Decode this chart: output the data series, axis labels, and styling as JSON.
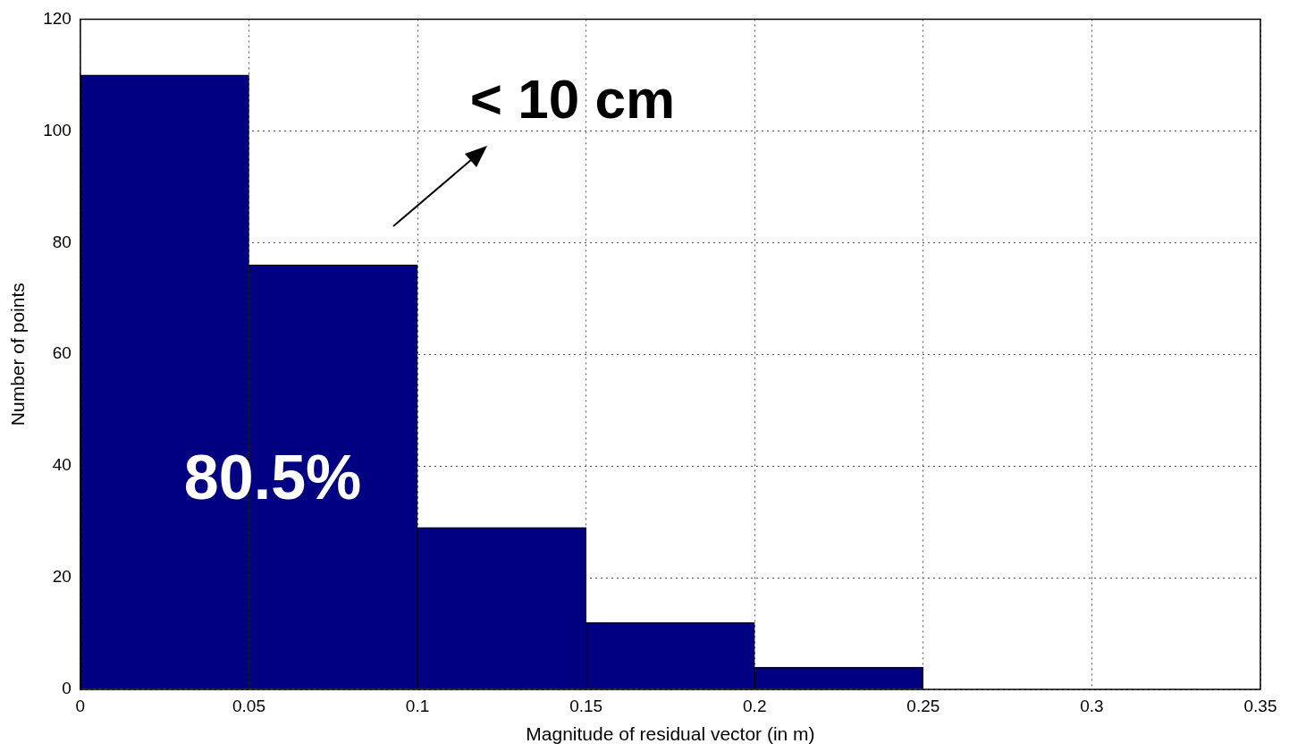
{
  "chart_data": {
    "type": "histogram",
    "xlabel": "Magnitude of residual vector (in m)",
    "ylabel": "Number of points",
    "bins": [
      0,
      0.05,
      0.1,
      0.15,
      0.2,
      0.25
    ],
    "values": [
      110,
      76,
      29,
      12,
      4
    ],
    "color": "#000080",
    "xlim": [
      0,
      0.35
    ],
    "xticks": [
      0,
      0.05,
      0.1,
      0.15,
      0.2,
      0.25,
      0.3,
      0.35
    ],
    "ylim": [
      0,
      120
    ],
    "yticks": [
      0,
      20,
      40,
      60,
      80,
      100,
      120
    ],
    "grid": true,
    "annotations": [
      "80.5%",
      "< 10 cm"
    ]
  }
}
